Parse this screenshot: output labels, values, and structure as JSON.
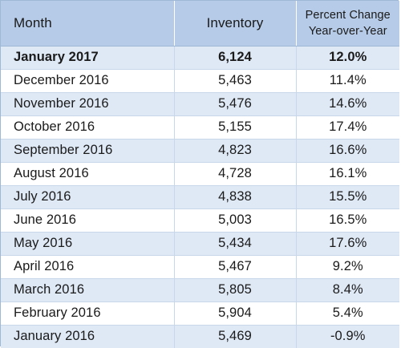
{
  "table": {
    "headers": {
      "month": "Month",
      "inventory": "Inventory",
      "pct_line1": "Percent Change",
      "pct_line2": "Year-over-Year"
    },
    "rows": [
      {
        "month": "January 2017",
        "inventory": "6,124",
        "pct": "12.0%"
      },
      {
        "month": "December 2016",
        "inventory": "5,463",
        "pct": "11.4%"
      },
      {
        "month": "November 2016",
        "inventory": "5,476",
        "pct": "14.6%"
      },
      {
        "month": "October 2016",
        "inventory": "5,155",
        "pct": "17.4%"
      },
      {
        "month": "September 2016",
        "inventory": "4,823",
        "pct": "16.6%"
      },
      {
        "month": "August 2016",
        "inventory": "4,728",
        "pct": "16.1%"
      },
      {
        "month": "July 2016",
        "inventory": "4,838",
        "pct": "15.5%"
      },
      {
        "month": "June 2016",
        "inventory": "5,003",
        "pct": "16.5%"
      },
      {
        "month": "May 2016",
        "inventory": "5,434",
        "pct": "17.6%"
      },
      {
        "month": "April 2016",
        "inventory": "5,467",
        "pct": "9.2%"
      },
      {
        "month": "March 2016",
        "inventory": "5,805",
        "pct": "8.4%"
      },
      {
        "month": "February 2016",
        "inventory": "5,904",
        "pct": "5.4%"
      },
      {
        "month": "January 2016",
        "inventory": "5,469",
        "pct": "-0.9%"
      }
    ]
  },
  "colors": {
    "header_bg": "#b6cbe7",
    "shaded_row_bg": "#dfe9f6",
    "plain_row_bg": "#ffffff",
    "border": "#9fb8d6"
  }
}
